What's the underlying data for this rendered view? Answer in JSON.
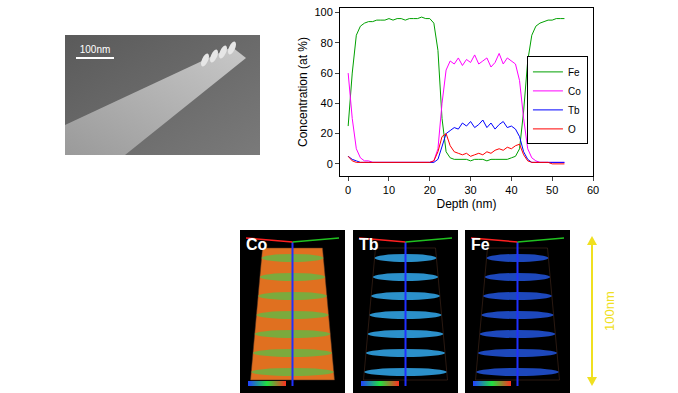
{
  "chart_data": {
    "type": "line",
    "x_label": "Depth (nm)",
    "y_label": "Concentration (at %)",
    "x": [
      0,
      1,
      2,
      3,
      4,
      5,
      6,
      7,
      8,
      9,
      10,
      11,
      12,
      13,
      14,
      15,
      16,
      17,
      18,
      19,
      20,
      21,
      22,
      23,
      24,
      25,
      26,
      27,
      28,
      29,
      30,
      31,
      32,
      33,
      34,
      35,
      36,
      37,
      38,
      39,
      40,
      41,
      42,
      43,
      44,
      45,
      46,
      47,
      48,
      49,
      50,
      51,
      52,
      53
    ],
    "series": [
      {
        "name": "Fe",
        "color": "#00a000",
        "values": [
          25,
          60,
          85,
          91,
          93,
          94,
          94,
          95,
          95,
          95,
          96,
          95,
          96,
          96,
          95,
          96,
          96,
          96,
          97,
          96,
          96,
          93,
          75,
          30,
          8,
          4,
          3,
          3,
          3,
          3,
          2,
          3,
          3,
          3,
          2,
          3,
          3,
          3,
          3,
          3,
          4,
          5,
          10,
          35,
          68,
          85,
          91,
          93,
          94,
          95,
          95,
          96,
          96,
          96
        ]
      },
      {
        "name": "Co",
        "color": "#ff00ff",
        "values": [
          60,
          30,
          10,
          4,
          2,
          2,
          1,
          1,
          1,
          1,
          1,
          1,
          1,
          1,
          1,
          1,
          1,
          1,
          1,
          1,
          1,
          2,
          10,
          40,
          62,
          68,
          66,
          70,
          65,
          69,
          67,
          72,
          66,
          68,
          70,
          64,
          67,
          73,
          66,
          70,
          68,
          66,
          55,
          30,
          10,
          4,
          2,
          1,
          1,
          1,
          1,
          1,
          1,
          1
        ]
      },
      {
        "name": "Tb",
        "color": "#0000ff",
        "values": [
          5,
          3,
          2,
          1,
          1,
          1,
          1,
          1,
          1,
          1,
          1,
          1,
          1,
          1,
          1,
          1,
          1,
          1,
          1,
          1,
          1,
          1,
          3,
          12,
          20,
          22,
          24,
          23,
          27,
          25,
          28,
          24,
          26,
          29,
          24,
          27,
          23,
          26,
          28,
          24,
          25,
          23,
          18,
          8,
          3,
          1,
          1,
          1,
          1,
          1,
          1,
          1,
          1,
          1
        ]
      },
      {
        "name": "O",
        "color": "#ff0000",
        "values": [
          5,
          2,
          1,
          1,
          1,
          1,
          1,
          1,
          1,
          1,
          1,
          1,
          1,
          1,
          1,
          1,
          1,
          1,
          1,
          1,
          1,
          2,
          8,
          18,
          20,
          12,
          8,
          7,
          6,
          7,
          5,
          6,
          7,
          6,
          8,
          7,
          9,
          10,
          9,
          11,
          10,
          12,
          13,
          6,
          2,
          1,
          1,
          1,
          1,
          1,
          0,
          0,
          0,
          0
        ]
      }
    ],
    "xlim": [
      -2,
      60
    ],
    "xticks": [
      0,
      10,
      20,
      30,
      40,
      50,
      60
    ],
    "ylim": [
      -8,
      103
    ],
    "yticks": [
      0,
      20,
      40,
      60,
      80,
      100
    ],
    "grid": false,
    "legend": "right"
  },
  "sem_image": {
    "scale_bar": "100nm"
  },
  "reconstructions": {
    "panels": [
      {
        "label": "Co"
      },
      {
        "label": "Tb"
      },
      {
        "label": "Fe"
      }
    ],
    "height_label": "100nm"
  }
}
